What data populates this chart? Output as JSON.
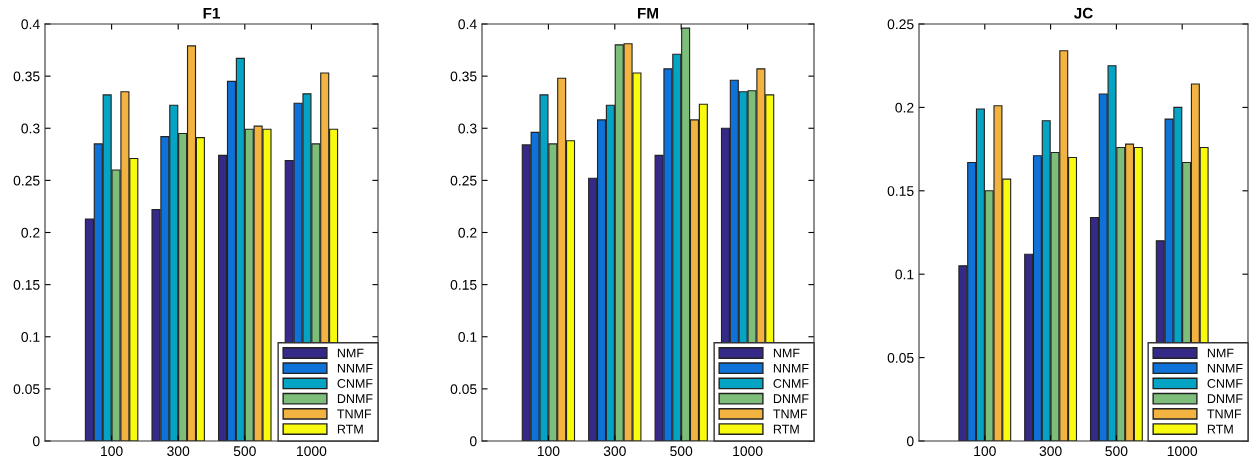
{
  "chart_data": [
    {
      "type": "bar",
      "title": "F1",
      "categories": [
        "100",
        "300",
        "500",
        "1000"
      ],
      "ylim": [
        0,
        0.4
      ],
      "yticks": [
        0,
        0.05,
        0.1,
        0.15,
        0.2,
        0.25,
        0.3,
        0.35,
        0.4
      ],
      "grid": false,
      "legend": "bottom right",
      "series": [
        {
          "name": "NMF",
          "color": "#352a87",
          "values": [
            0.213,
            0.222,
            0.274,
            0.269
          ]
        },
        {
          "name": "NNMF",
          "color": "#0f72d8",
          "values": [
            0.285,
            0.292,
            0.345,
            0.324
          ]
        },
        {
          "name": "CNMF",
          "color": "#06a4c4",
          "values": [
            0.332,
            0.322,
            0.367,
            0.333
          ]
        },
        {
          "name": "DNMF",
          "color": "#7dbf7a",
          "values": [
            0.26,
            0.295,
            0.299,
            0.285
          ]
        },
        {
          "name": "TNMF",
          "color": "#f2b340",
          "values": [
            0.335,
            0.379,
            0.302,
            0.353
          ]
        },
        {
          "name": "RTM",
          "color": "#f9fb0e",
          "values": [
            0.271,
            0.291,
            0.299,
            0.299
          ]
        }
      ]
    },
    {
      "type": "bar",
      "title": "FM",
      "categories": [
        "100",
        "300",
        "500",
        "1000"
      ],
      "ylim": [
        0,
        0.4
      ],
      "yticks": [
        0,
        0.05,
        0.1,
        0.15,
        0.2,
        0.25,
        0.3,
        0.35,
        0.4
      ],
      "grid": false,
      "legend": "bottom right",
      "series": [
        {
          "name": "NMF",
          "color": "#352a87",
          "values": [
            0.284,
            0.252,
            0.274,
            0.3
          ]
        },
        {
          "name": "NNMF",
          "color": "#0f72d8",
          "values": [
            0.296,
            0.308,
            0.357,
            0.346
          ]
        },
        {
          "name": "CNMF",
          "color": "#06a4c4",
          "values": [
            0.332,
            0.322,
            0.371,
            0.335
          ]
        },
        {
          "name": "DNMF",
          "color": "#7dbf7a",
          "values": [
            0.285,
            0.38,
            0.396,
            0.336
          ]
        },
        {
          "name": "TNMF",
          "color": "#f2b340",
          "values": [
            0.348,
            0.381,
            0.308,
            0.357
          ]
        },
        {
          "name": "RTM",
          "color": "#f9fb0e",
          "values": [
            0.288,
            0.353,
            0.323,
            0.332
          ]
        }
      ]
    },
    {
      "type": "bar",
      "title": "JC",
      "categories": [
        "100",
        "300",
        "500",
        "1000"
      ],
      "ylim": [
        0,
        0.25
      ],
      "yticks": [
        0,
        0.05,
        0.1,
        0.15,
        0.2,
        0.25
      ],
      "grid": false,
      "legend": "bottom right",
      "series": [
        {
          "name": "NMF",
          "color": "#352a87",
          "values": [
            0.105,
            0.112,
            0.134,
            0.12
          ]
        },
        {
          "name": "NNMF",
          "color": "#0f72d8",
          "values": [
            0.167,
            0.171,
            0.208,
            0.193
          ]
        },
        {
          "name": "CNMF",
          "color": "#06a4c4",
          "values": [
            0.199,
            0.192,
            0.225,
            0.2
          ]
        },
        {
          "name": "DNMF",
          "color": "#7dbf7a",
          "values": [
            0.15,
            0.173,
            0.176,
            0.167
          ]
        },
        {
          "name": "TNMF",
          "color": "#f2b340",
          "values": [
            0.201,
            0.234,
            0.178,
            0.214
          ]
        },
        {
          "name": "RTM",
          "color": "#f9fb0e",
          "values": [
            0.157,
            0.17,
            0.176,
            0.176
          ]
        }
      ]
    }
  ]
}
